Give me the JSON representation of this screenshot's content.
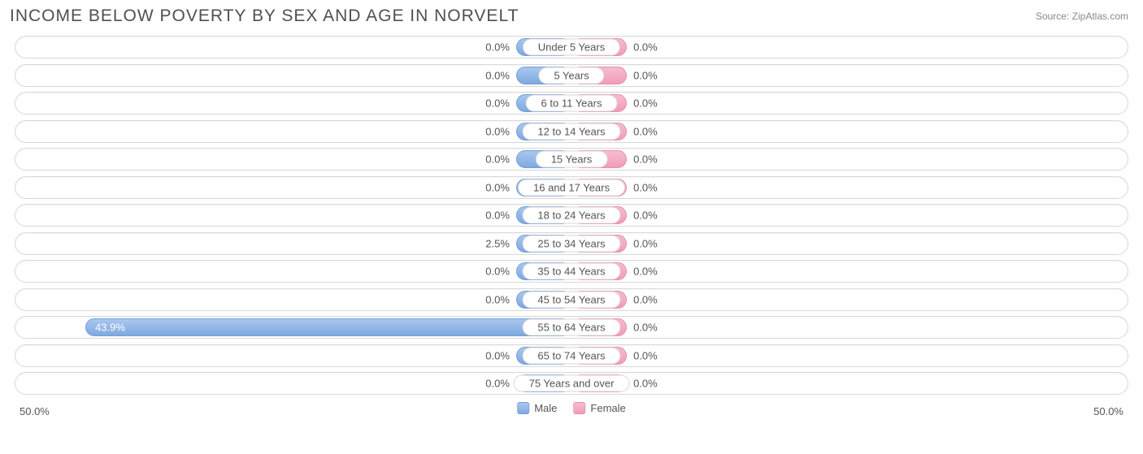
{
  "title": "INCOME BELOW POVERTY BY SEX AND AGE IN NORVELT",
  "source": "Source: ZipAtlas.com",
  "chart": {
    "type": "population-pyramid",
    "axis_max_pct": 50.0,
    "axis_left_label": "50.0%",
    "axis_right_label": "50.0%",
    "min_bar_pct": 5.0,
    "colors": {
      "male_fill_top": "#a9c7ef",
      "male_fill_bottom": "#7fa9e0",
      "male_border": "#6f9fd8",
      "female_fill_top": "#f7bcd0",
      "female_fill_bottom": "#f09db8",
      "female_border": "#e88fab",
      "track_border": "#d8d8d8",
      "text": "#555555",
      "title_text": "#505050",
      "source_text": "#888888",
      "background": "#ffffff"
    },
    "legend": {
      "male": "Male",
      "female": "Female"
    },
    "rows": [
      {
        "category": "Under 5 Years",
        "male_pct": 0.0,
        "male_label": "0.0%",
        "female_pct": 0.0,
        "female_label": "0.0%"
      },
      {
        "category": "5 Years",
        "male_pct": 0.0,
        "male_label": "0.0%",
        "female_pct": 0.0,
        "female_label": "0.0%"
      },
      {
        "category": "6 to 11 Years",
        "male_pct": 0.0,
        "male_label": "0.0%",
        "female_pct": 0.0,
        "female_label": "0.0%"
      },
      {
        "category": "12 to 14 Years",
        "male_pct": 0.0,
        "male_label": "0.0%",
        "female_pct": 0.0,
        "female_label": "0.0%"
      },
      {
        "category": "15 Years",
        "male_pct": 0.0,
        "male_label": "0.0%",
        "female_pct": 0.0,
        "female_label": "0.0%"
      },
      {
        "category": "16 and 17 Years",
        "male_pct": 0.0,
        "male_label": "0.0%",
        "female_pct": 0.0,
        "female_label": "0.0%"
      },
      {
        "category": "18 to 24 Years",
        "male_pct": 0.0,
        "male_label": "0.0%",
        "female_pct": 0.0,
        "female_label": "0.0%"
      },
      {
        "category": "25 to 34 Years",
        "male_pct": 2.5,
        "male_label": "2.5%",
        "female_pct": 0.0,
        "female_label": "0.0%"
      },
      {
        "category": "35 to 44 Years",
        "male_pct": 0.0,
        "male_label": "0.0%",
        "female_pct": 0.0,
        "female_label": "0.0%"
      },
      {
        "category": "45 to 54 Years",
        "male_pct": 0.0,
        "male_label": "0.0%",
        "female_pct": 0.0,
        "female_label": "0.0%"
      },
      {
        "category": "55 to 64 Years",
        "male_pct": 43.9,
        "male_label": "43.9%",
        "female_pct": 0.0,
        "female_label": "0.0%"
      },
      {
        "category": "65 to 74 Years",
        "male_pct": 0.0,
        "male_label": "0.0%",
        "female_pct": 0.0,
        "female_label": "0.0%"
      },
      {
        "category": "75 Years and over",
        "male_pct": 0.0,
        "male_label": "0.0%",
        "female_pct": 0.0,
        "female_label": "0.0%"
      }
    ]
  }
}
